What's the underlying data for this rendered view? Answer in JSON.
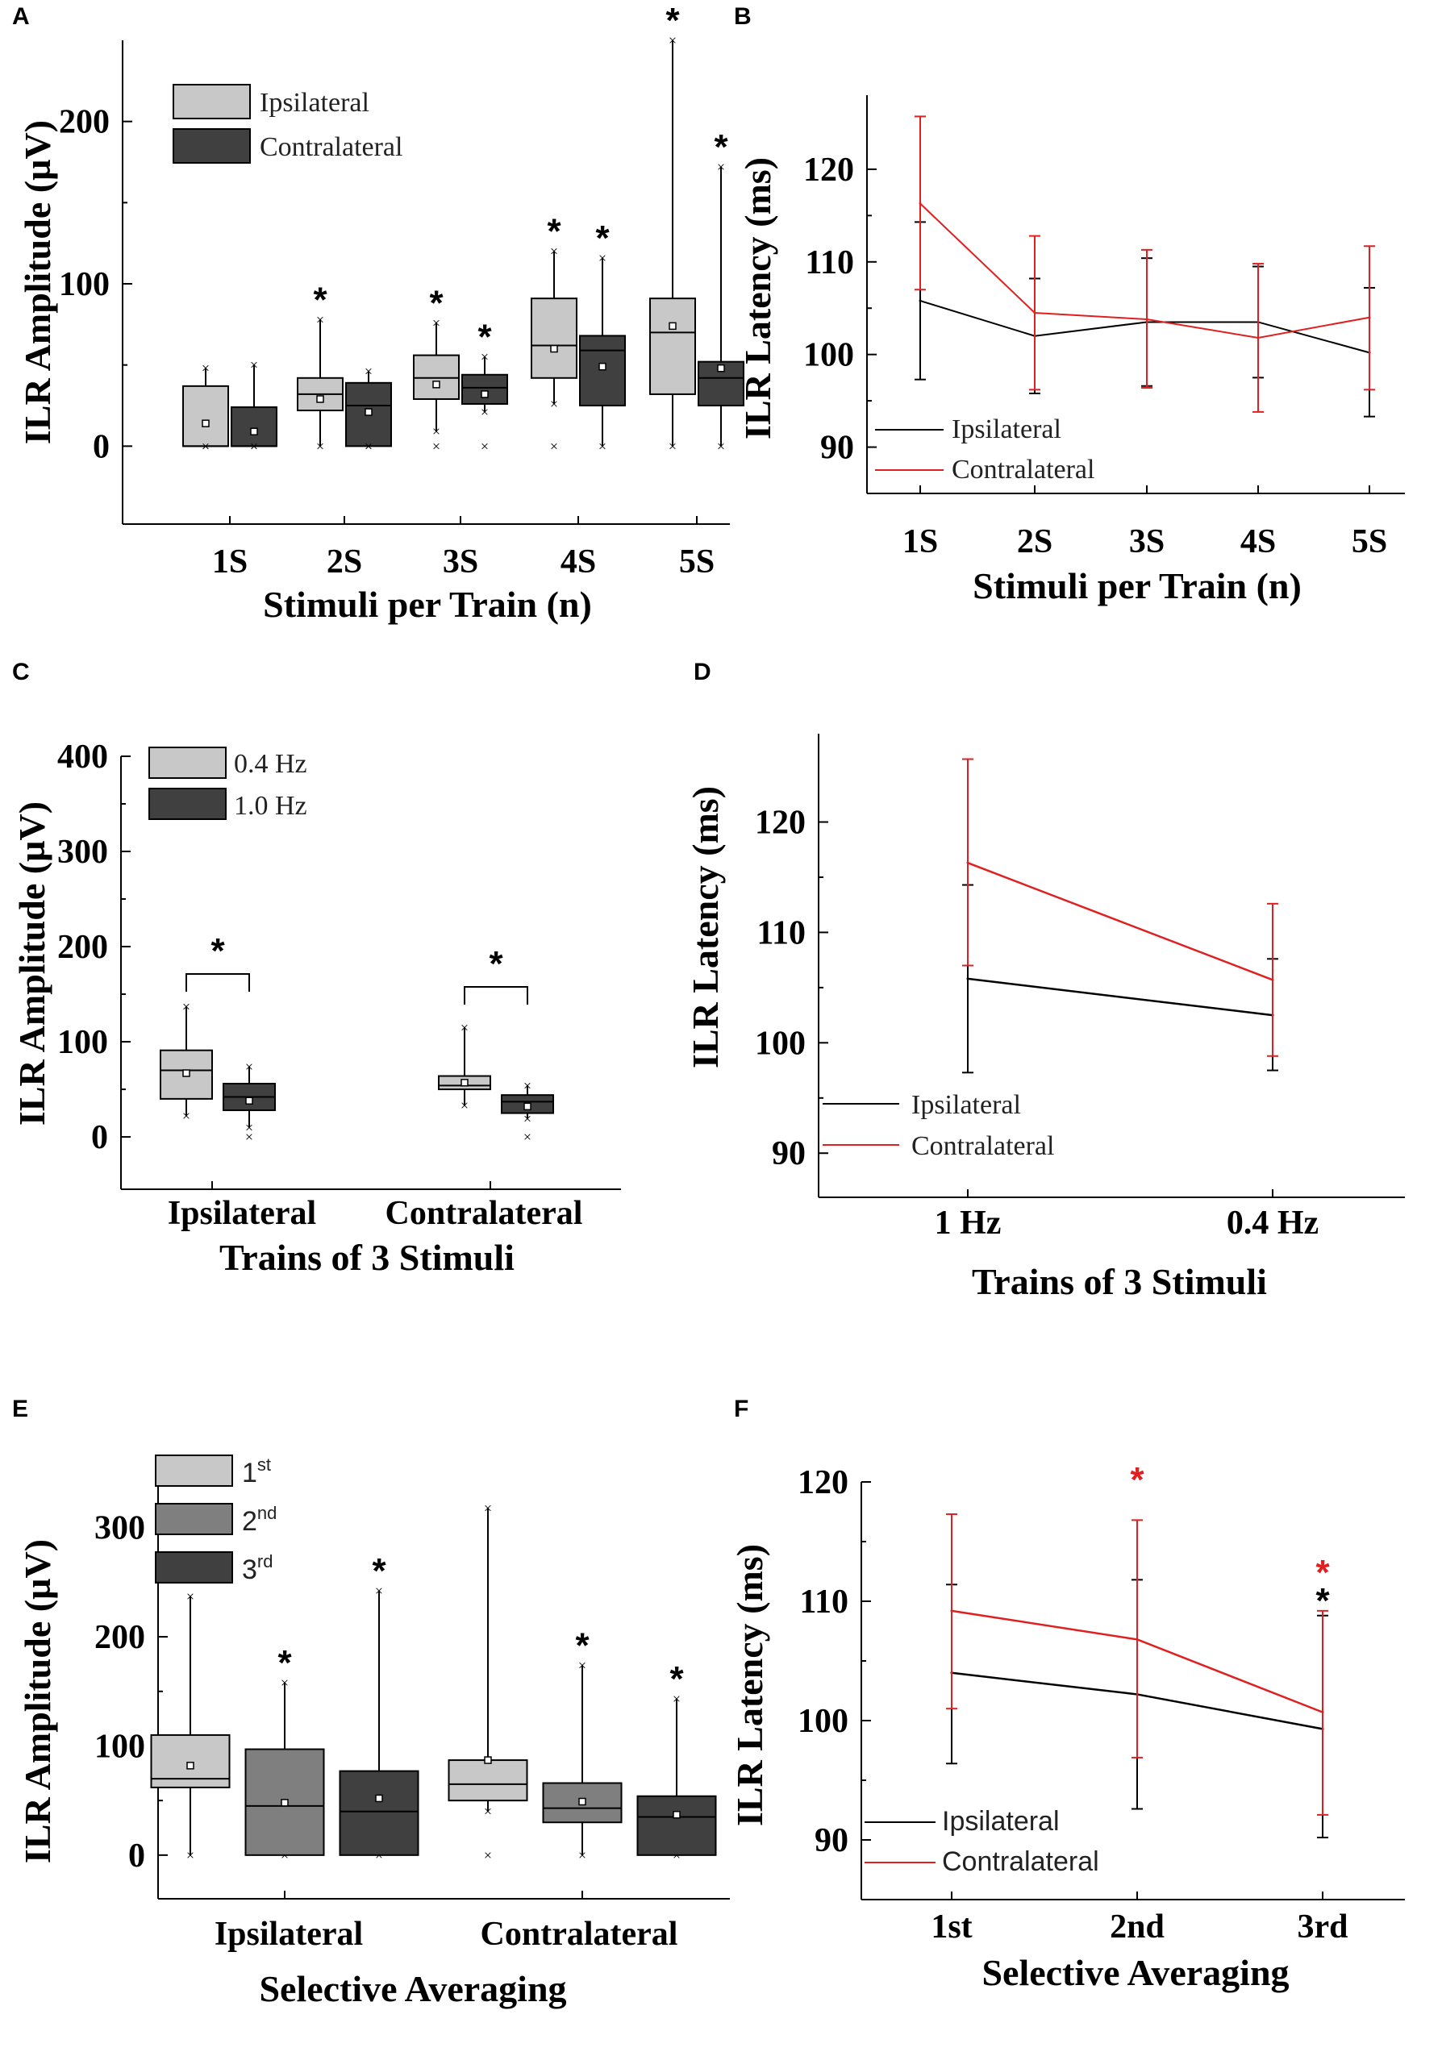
{
  "figure": {
    "panel_labels": [
      "A",
      "B",
      "C",
      "D",
      "E",
      "F"
    ],
    "colors": {
      "ipsi": "#000000",
      "contra": "#e02020",
      "light_box": "#c8c8c8",
      "mid_box": "#7f7f7f",
      "dark_box": "#404040"
    }
  },
  "chart_data": [
    {
      "panel": "A",
      "type": "box",
      "xlabel": "Stimuli per Train (n)",
      "ylabel": "ILR Amplitude (µV)",
      "ylim": [
        -48,
        250
      ],
      "yticks": [
        0,
        100,
        200
      ],
      "categories": [
        "1S",
        "2S",
        "3S",
        "4S",
        "5S"
      ],
      "legend": [
        "Ipsilateral",
        "Contralateral"
      ],
      "boxes": [
        {
          "cat": 0,
          "series": 0,
          "q1": 0,
          "median": 0,
          "q3": 37,
          "mean": 14,
          "whisker_low": 0,
          "whisker_high": 48,
          "star": ""
        },
        {
          "cat": 0,
          "series": 1,
          "q1": 0,
          "median": 0,
          "q3": 24,
          "mean": 9,
          "whisker_low": 0,
          "whisker_high": 50,
          "star": ""
        },
        {
          "cat": 1,
          "series": 0,
          "q1": 22,
          "median": 32,
          "q3": 42,
          "mean": 29,
          "whisker_low": 0,
          "whisker_high": 78,
          "star": "*"
        },
        {
          "cat": 1,
          "series": 1,
          "q1": 0,
          "median": 25,
          "q3": 39,
          "mean": 21,
          "whisker_low": 0,
          "whisker_high": 46,
          "star": ""
        },
        {
          "cat": 2,
          "series": 0,
          "q1": 29,
          "median": 42,
          "q3": 56,
          "mean": 38,
          "whisker_low": 9,
          "whisker_high": 76,
          "star": "*"
        },
        {
          "cat": 2,
          "series": 1,
          "q1": 26,
          "median": 36,
          "q3": 44,
          "mean": 32,
          "whisker_low": 21,
          "whisker_high": 55,
          "star": "*"
        },
        {
          "cat": 3,
          "series": 0,
          "q1": 42,
          "median": 62,
          "q3": 91,
          "mean": 60,
          "whisker_low": 26,
          "whisker_high": 120,
          "star": "*"
        },
        {
          "cat": 3,
          "series": 1,
          "q1": 25,
          "median": 59,
          "q3": 68,
          "mean": 49,
          "whisker_low": 0,
          "whisker_high": 116,
          "star": "*"
        },
        {
          "cat": 4,
          "series": 0,
          "q1": 32,
          "median": 70,
          "q3": 91,
          "mean": 74,
          "whisker_low": 0,
          "whisker_high": 250,
          "star": "*"
        },
        {
          "cat": 4,
          "series": 1,
          "q1": 25,
          "median": 42,
          "q3": 52,
          "mean": 48,
          "whisker_low": 0,
          "whisker_high": 172,
          "star": "*"
        }
      ],
      "outliers": [
        {
          "cat": 0,
          "series": 0,
          "values": [
            0
          ]
        },
        {
          "cat": 0,
          "series": 1,
          "values": [
            0
          ]
        },
        {
          "cat": 1,
          "series": 1,
          "values": [
            0
          ]
        },
        {
          "cat": 2,
          "series": 0,
          "values": [
            0
          ]
        },
        {
          "cat": 2,
          "series": 1,
          "values": [
            0
          ]
        },
        {
          "cat": 3,
          "series": 0,
          "values": [
            0
          ]
        }
      ]
    },
    {
      "panel": "B",
      "type": "line",
      "xlabel": "Stimuli per Train (n)",
      "ylabel": "ILR Latency (ms)",
      "ylim": [
        85,
        128
      ],
      "yticks": [
        90,
        100,
        110,
        120
      ],
      "categories": [
        "1S",
        "2S",
        "3S",
        "4S",
        "5S"
      ],
      "series": [
        {
          "name": "Ipsilateral",
          "values": [
            105.8,
            102.0,
            103.5,
            103.5,
            100.2
          ],
          "err_low": [
            97.3,
            95.8,
            96.6,
            97.5,
            93.3
          ],
          "err_high": [
            114.3,
            108.2,
            110.4,
            109.5,
            107.2
          ]
        },
        {
          "name": "Contralateral",
          "values": [
            116.3,
            104.5,
            103.8,
            101.8,
            104.0
          ],
          "err_low": [
            107.0,
            96.2,
            96.4,
            93.8,
            96.2
          ],
          "err_high": [
            125.7,
            112.8,
            111.3,
            109.8,
            111.7
          ]
        }
      ]
    },
    {
      "panel": "C",
      "type": "box",
      "xlabel": "Trains of 3 Stimuli",
      "ylabel": "ILR Amplitude (µV)",
      "ylim": [
        -55,
        400
      ],
      "yticks": [
        0,
        100,
        200,
        300,
        400
      ],
      "categories": [
        "Ipsilateral",
        "Contralateral"
      ],
      "legend": [
        "0.4 Hz",
        "1.0 Hz"
      ],
      "boxes": [
        {
          "cat": 0,
          "series": 0,
          "q1": 40,
          "median": 70,
          "q3": 91,
          "mean": 67,
          "whisker_low": 22,
          "whisker_high": 137,
          "star": ""
        },
        {
          "cat": 0,
          "series": 1,
          "q1": 28,
          "median": 42,
          "q3": 56,
          "mean": 38,
          "whisker_low": 10,
          "whisker_high": 74,
          "star": ""
        },
        {
          "cat": 1,
          "series": 0,
          "q1": 50,
          "median": 54,
          "q3": 64,
          "mean": 57,
          "whisker_low": 33,
          "whisker_high": 115,
          "star": ""
        },
        {
          "cat": 1,
          "series": 1,
          "q1": 25,
          "median": 37,
          "q3": 44,
          "mean": 32,
          "whisker_low": 19,
          "whisker_high": 54,
          "star": ""
        }
      ],
      "outliers": [
        {
          "cat": 0,
          "series": 1,
          "values": [
            0
          ]
        },
        {
          "cat": 1,
          "series": 1,
          "values": [
            0
          ]
        }
      ],
      "brackets": [
        {
          "cat": 0,
          "label": "*"
        },
        {
          "cat": 1,
          "label": "*"
        }
      ]
    },
    {
      "panel": "D",
      "type": "line",
      "xlabel": "Trains of 3 Stimuli",
      "ylabel": "ILR Latency (ms)",
      "ylim": [
        86,
        128
      ],
      "yticks": [
        90,
        100,
        110,
        120
      ],
      "categories": [
        "1 Hz",
        "0.4 Hz"
      ],
      "series": [
        {
          "name": "Ipsilateral",
          "values": [
            105.8,
            102.5
          ],
          "err_low": [
            97.3,
            97.5
          ],
          "err_high": [
            114.3,
            107.6
          ]
        },
        {
          "name": "Contralateral",
          "values": [
            116.3,
            105.7
          ],
          "err_low": [
            107.0,
            98.8
          ],
          "err_high": [
            125.7,
            112.6
          ]
        }
      ]
    },
    {
      "panel": "E",
      "type": "box",
      "xlabel": "Selective Averaging",
      "ylabel": "ILR Amplitude (µV)",
      "ylim": [
        -40,
        350
      ],
      "yticks": [
        0,
        100,
        200,
        300
      ],
      "categories": [
        "Ipsilateral",
        "Contralateral"
      ],
      "legend": [
        "1st",
        "2nd",
        "3rd"
      ],
      "legend_base": [
        "1",
        "2",
        "3"
      ],
      "legend_sup": [
        "st",
        "nd",
        "rd"
      ],
      "boxes": [
        {
          "cat": 0,
          "series": 0,
          "q1": 62,
          "median": 70,
          "q3": 110,
          "mean": 82,
          "whisker_low": 0,
          "whisker_high": 237,
          "star": ""
        },
        {
          "cat": 0,
          "series": 1,
          "q1": 0,
          "median": 45,
          "q3": 97,
          "mean": 48,
          "whisker_low": 0,
          "whisker_high": 158,
          "star": "*"
        },
        {
          "cat": 0,
          "series": 2,
          "q1": 0,
          "median": 40,
          "q3": 77,
          "mean": 52,
          "whisker_low": 0,
          "whisker_high": 242,
          "star": "*"
        },
        {
          "cat": 1,
          "series": 0,
          "q1": 50,
          "median": 65,
          "q3": 87,
          "mean": 87,
          "whisker_low": 40,
          "whisker_high": 318,
          "star": ""
        },
        {
          "cat": 1,
          "series": 1,
          "q1": 30,
          "median": 43,
          "q3": 66,
          "mean": 49,
          "whisker_low": 0,
          "whisker_high": 174,
          "star": "*"
        },
        {
          "cat": 1,
          "series": 2,
          "q1": 0,
          "median": 35,
          "q3": 54,
          "mean": 37,
          "whisker_low": 0,
          "whisker_high": 143,
          "star": "*"
        }
      ],
      "outliers": [
        {
          "cat": 1,
          "series": 0,
          "values": [
            0
          ]
        }
      ]
    },
    {
      "panel": "F",
      "type": "line",
      "xlabel": "Selective Averaging",
      "ylabel": "ILR Latency (ms)",
      "ylim": [
        85,
        120
      ],
      "yticks": [
        90,
        100,
        110,
        120
      ],
      "categories": [
        "1st",
        "2nd",
        "3rd"
      ],
      "series": [
        {
          "name": "Ipsilateral",
          "values": [
            104.0,
            102.2,
            99.3
          ],
          "err_low": [
            96.4,
            92.6,
            90.2
          ],
          "err_high": [
            111.4,
            111.8,
            108.8
          ]
        },
        {
          "name": "Contralateral",
          "values": [
            109.2,
            106.8,
            100.7
          ],
          "err_low": [
            101.0,
            96.9,
            92.1
          ],
          "err_high": [
            117.3,
            116.8,
            109.2
          ]
        }
      ],
      "stars": [
        {
          "cat": 1,
          "series": "Contralateral",
          "label": "*"
        },
        {
          "cat": 2,
          "series": "Contralateral",
          "label": "*"
        },
        {
          "cat": 2,
          "series": "Ipsilateral",
          "label": "*"
        }
      ]
    }
  ]
}
